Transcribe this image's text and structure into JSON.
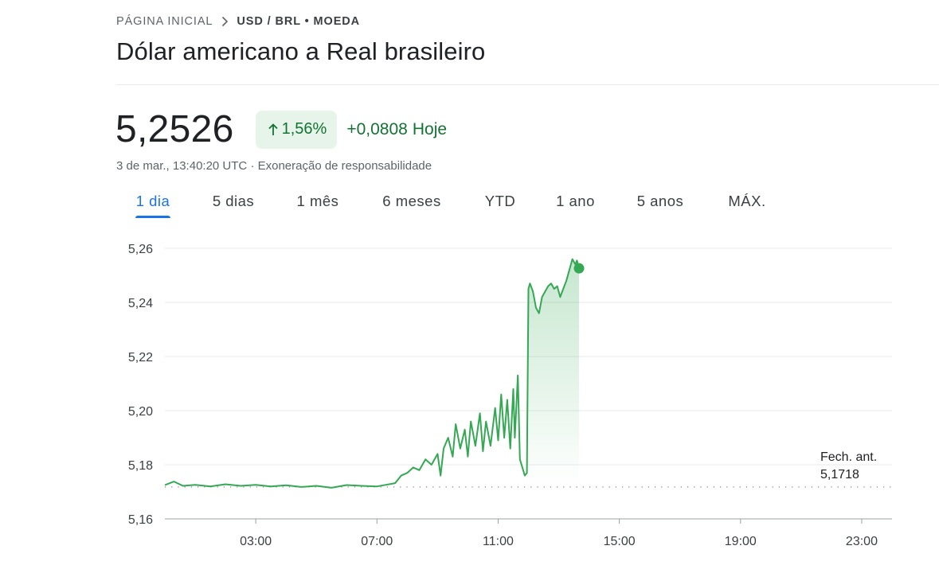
{
  "breadcrumb": {
    "home": "PÁGINA INICIAL",
    "current": "USD / BRL • MOEDA"
  },
  "title": "Dólar americano a Real brasileiro",
  "quote": {
    "price": "5,2526",
    "change_percent": "1,56%",
    "change_abs": "+0,0808",
    "change_period": "Hoje",
    "timestamp": "3 de mar., 13:40:20 UTC",
    "separator": "·",
    "disclaimer": "Exoneração de responsabilidade"
  },
  "tabs": [
    {
      "label": "1 dia",
      "active": true
    },
    {
      "label": "5 dias",
      "active": false
    },
    {
      "label": "1 mês",
      "active": false
    },
    {
      "label": "6 meses",
      "active": false
    },
    {
      "label": "YTD",
      "active": false
    },
    {
      "label": "1 ano",
      "active": false
    },
    {
      "label": "5 anos",
      "active": false
    },
    {
      "label": "MÁX.",
      "active": false
    }
  ],
  "colors": {
    "up": "#34a853",
    "up_text": "#137333",
    "up_bg": "#e6f4ea",
    "accent": "#1a73e8"
  },
  "icons": {
    "breadcrumb_separator": "chevron-right-icon",
    "change_direction": "arrow-up-icon"
  },
  "chart_data": {
    "type": "area",
    "title": "",
    "xlabel": "",
    "ylabel": "",
    "x_ticks": [
      "03:00",
      "07:00",
      "11:00",
      "15:00",
      "19:00",
      "23:00"
    ],
    "y_ticks": [
      "5,16",
      "5,18",
      "5,20",
      "5,22",
      "5,24",
      "5,26"
    ],
    "ylim": [
      5.16,
      5.26
    ],
    "xlim_hours": [
      0.0,
      24.0
    ],
    "grid": "horizontal",
    "previous_close": {
      "label_line1": "Fech. ant.",
      "label_line2": "5,1718",
      "value": 5.1718
    },
    "series": [
      {
        "points": [
          [
            0.0,
            5.1725
          ],
          [
            0.3,
            5.1738
          ],
          [
            0.6,
            5.1722
          ],
          [
            1.0,
            5.1726
          ],
          [
            1.5,
            5.172
          ],
          [
            2.0,
            5.1728
          ],
          [
            2.5,
            5.1722
          ],
          [
            3.0,
            5.1726
          ],
          [
            3.5,
            5.172
          ],
          [
            4.0,
            5.1724
          ],
          [
            4.5,
            5.1718
          ],
          [
            5.0,
            5.1722
          ],
          [
            5.5,
            5.1715
          ],
          [
            6.0,
            5.1725
          ],
          [
            6.5,
            5.1722
          ],
          [
            7.0,
            5.172
          ],
          [
            7.3,
            5.1726
          ],
          [
            7.6,
            5.1732
          ],
          [
            7.8,
            5.176
          ],
          [
            8.0,
            5.177
          ],
          [
            8.2,
            5.179
          ],
          [
            8.4,
            5.178
          ],
          [
            8.6,
            5.182
          ],
          [
            8.8,
            5.18
          ],
          [
            9.0,
            5.184
          ],
          [
            9.1,
            5.176
          ],
          [
            9.2,
            5.186
          ],
          [
            9.35,
            5.19
          ],
          [
            9.5,
            5.183
          ],
          [
            9.6,
            5.195
          ],
          [
            9.75,
            5.186
          ],
          [
            9.9,
            5.193
          ],
          [
            10.0,
            5.183
          ],
          [
            10.1,
            5.196
          ],
          [
            10.25,
            5.187
          ],
          [
            10.4,
            5.199
          ],
          [
            10.5,
            5.185
          ],
          [
            10.6,
            5.196
          ],
          [
            10.75,
            5.187
          ],
          [
            10.9,
            5.201
          ],
          [
            11.0,
            5.189
          ],
          [
            11.1,
            5.206
          ],
          [
            11.2,
            5.19
          ],
          [
            11.3,
            5.204
          ],
          [
            11.4,
            5.186
          ],
          [
            11.5,
            5.208
          ],
          [
            11.55,
            5.19
          ],
          [
            11.65,
            5.213
          ],
          [
            11.72,
            5.182
          ],
          [
            11.8,
            5.179
          ],
          [
            11.88,
            5.176
          ],
          [
            11.95,
            5.177
          ],
          [
            12.0,
            5.245
          ],
          [
            12.05,
            5.247
          ],
          [
            12.15,
            5.244
          ],
          [
            12.25,
            5.238
          ],
          [
            12.35,
            5.236
          ],
          [
            12.45,
            5.242
          ],
          [
            12.55,
            5.244
          ],
          [
            12.65,
            5.246
          ],
          [
            12.75,
            5.247
          ],
          [
            12.85,
            5.245
          ],
          [
            12.95,
            5.246
          ],
          [
            13.05,
            5.242
          ],
          [
            13.15,
            5.245
          ],
          [
            13.25,
            5.248
          ],
          [
            13.35,
            5.252
          ],
          [
            13.45,
            5.256
          ],
          [
            13.55,
            5.254
          ],
          [
            13.6,
            5.2555
          ],
          [
            13.67,
            5.2526
          ]
        ]
      }
    ]
  }
}
